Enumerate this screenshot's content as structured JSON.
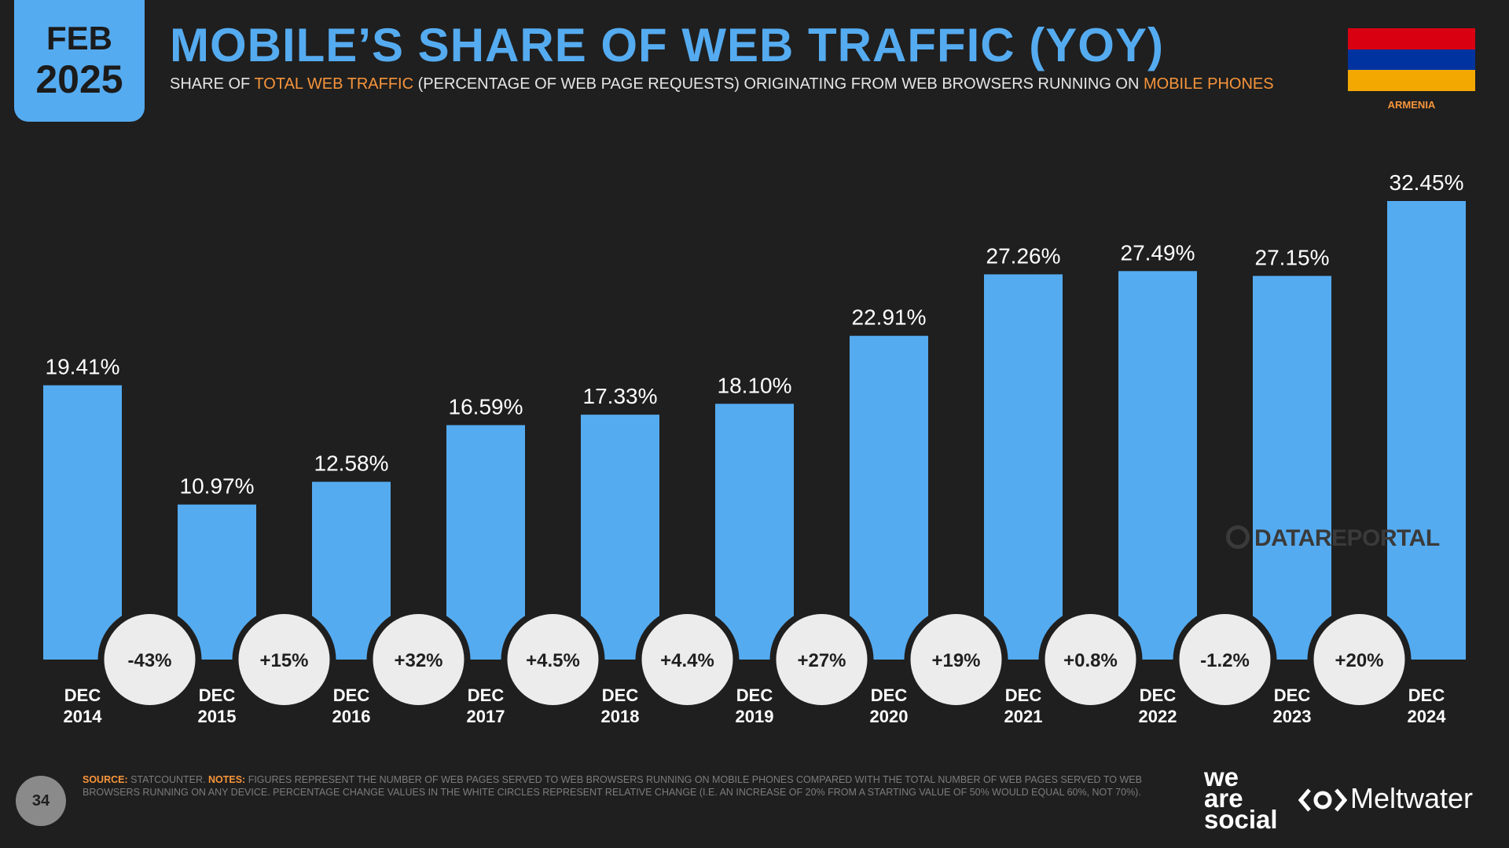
{
  "badge": {
    "month": "FEB",
    "year": "2025"
  },
  "header": {
    "title": "MOBILE’S SHARE OF WEB TRAFFIC (YOY)",
    "subtitle_prefix": "SHARE OF ",
    "subtitle_hl1": "TOTAL WEB TRAFFIC",
    "subtitle_mid": " (PERCENTAGE OF WEB PAGE REQUESTS) ORIGINATING FROM WEB BROWSERS RUNNING ON ",
    "subtitle_hl2": "MOBILE PHONES"
  },
  "country": {
    "name": "ARMENIA",
    "flag_colors": [
      "#d90012",
      "#0033a0",
      "#f2a800"
    ]
  },
  "colors": {
    "bar": "#55abf0",
    "circle": "#ececec",
    "background": "#1f1f1f",
    "accent": "#f7953b"
  },
  "chart_data": {
    "type": "bar",
    "title": "MOBILE’S SHARE OF WEB TRAFFIC (YOY)",
    "categories": [
      [
        "DEC",
        "2014"
      ],
      [
        "DEC",
        "2015"
      ],
      [
        "DEC",
        "2016"
      ],
      [
        "DEC",
        "2017"
      ],
      [
        "DEC",
        "2018"
      ],
      [
        "DEC",
        "2019"
      ],
      [
        "DEC",
        "2020"
      ],
      [
        "DEC",
        "2021"
      ],
      [
        "DEC",
        "2022"
      ],
      [
        "DEC",
        "2023"
      ],
      [
        "DEC",
        "2024"
      ]
    ],
    "values": [
      19.41,
      10.97,
      12.58,
      16.59,
      17.33,
      18.1,
      22.91,
      27.26,
      27.49,
      27.15,
      32.45
    ],
    "value_labels": [
      "19.41%",
      "10.97%",
      "12.58%",
      "16.59%",
      "17.33%",
      "18.10%",
      "22.91%",
      "27.26%",
      "27.49%",
      "27.15%",
      "32.45%"
    ],
    "changes": [
      "-43%",
      "+15%",
      "+32%",
      "+4.5%",
      "+4.4%",
      "+27%",
      "+19%",
      "+0.8%",
      "-1.2%",
      "+20%"
    ],
    "ylim": [
      0,
      35
    ],
    "xlabel": "",
    "ylabel": ""
  },
  "watermark": "DATAREPORTAL",
  "footer": {
    "source_label": "SOURCE:",
    "source_text": " STATCOUNTER. ",
    "notes_label": "NOTES:",
    "notes_text": " FIGURES REPRESENT THE NUMBER OF WEB PAGES SERVED TO WEB BROWSERS RUNNING ON MOBILE PHONES COMPARED WITH THE TOTAL NUMBER OF WEB PAGES SERVED TO WEB BROWSERS RUNNING ON ANY DEVICE. PERCENTAGE CHANGE VALUES IN THE WHITE CIRCLES REPRESENT RELATIVE CHANGE (I.E. AN INCREASE OF 20% FROM A STARTING VALUE OF 50% WOULD EQUAL 60%, NOT 70%).",
    "page_number": "34"
  },
  "brands": {
    "was_line1": "we",
    "was_line2": "are",
    "was_line3": "social",
    "meltwater": "Meltwater"
  }
}
